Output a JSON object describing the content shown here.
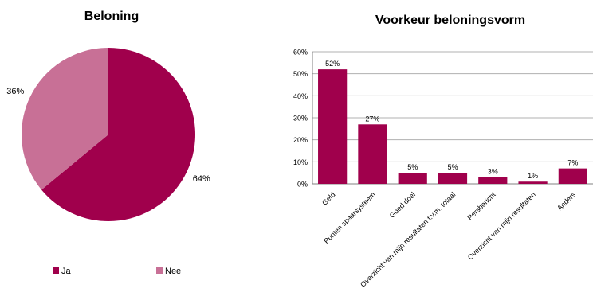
{
  "colors": {
    "ja": "#a0004c",
    "nee": "#c87096",
    "bar": "#a0004c"
  },
  "chart_data": [
    {
      "type": "pie",
      "title": "Beloning",
      "slices": [
        {
          "label": "Ja",
          "value": 64,
          "value_label": "64%"
        },
        {
          "label": "Nee",
          "value": 36,
          "value_label": "36%"
        }
      ],
      "legend": [
        "Ja",
        "Nee"
      ],
      "legend_position": "bottom"
    },
    {
      "type": "bar",
      "title": "Voorkeur beloningsvorm",
      "categories": [
        "Geld",
        "Punten spaarsysteem",
        "Goed doel",
        "Overzicht van mijn resultaten t.v.m. totaal",
        "Persbericht",
        "Overzicht van mijn resultaten",
        "Anders"
      ],
      "values": [
        52,
        27,
        5,
        5,
        3,
        1,
        7
      ],
      "value_labels": [
        "52%",
        "27%",
        "5%",
        "5%",
        "3%",
        "1%",
        "7%"
      ],
      "yticks": [
        "0%",
        "10%",
        "20%",
        "30%",
        "40%",
        "50%",
        "60%"
      ],
      "ylim": [
        0,
        60
      ],
      "grid": true
    }
  ]
}
